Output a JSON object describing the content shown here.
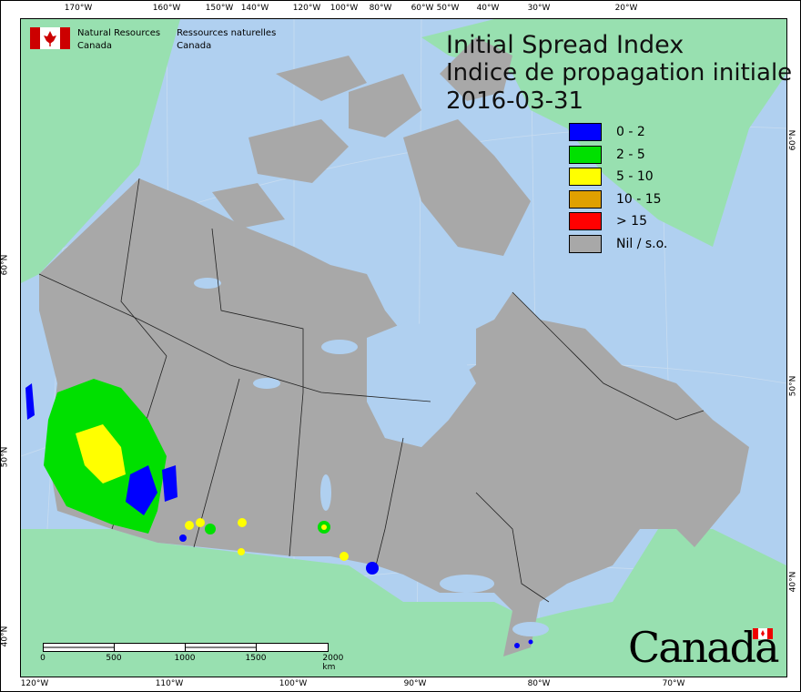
{
  "title": {
    "en": "Initial Spread Index",
    "fr": "Indice de propagation initiale",
    "date": "2016-03-31"
  },
  "agency": {
    "en_line1": "Natural Resources",
    "en_line2": "Canada",
    "fr_line1": "Ressources naturelles",
    "fr_line2": "Canada"
  },
  "wordmark": "Canada",
  "legend": [
    {
      "label": "0 - 2",
      "color": "#0000ff"
    },
    {
      "label": "2 - 5",
      "color": "#00e000"
    },
    {
      "label": "5 - 10",
      "color": "#ffff00"
    },
    {
      "label": "10 - 15",
      "color": "#e0a000"
    },
    {
      "label": "> 15",
      "color": "#ff0000"
    },
    {
      "label": "Nil / s.o.",
      "color": "#a8a8a8"
    }
  ],
  "top_ticks": [
    "170°W",
    "160°W",
    "150°W",
    "140°W",
    "120°W",
    "100°W",
    "80°W",
    "60°W",
    "50°W",
    "40°W",
    "30°W",
    "20°W"
  ],
  "bottom_ticks": [
    "120°W",
    "110°W",
    "100°W",
    "90°W",
    "80°W",
    "70°W"
  ],
  "left_ticks": [
    "60°N",
    "50°N",
    "40°N"
  ],
  "right_ticks": [
    "60°N",
    "50°N",
    "40°N"
  ],
  "scale": {
    "labels": [
      "0",
      "500",
      "1000",
      "1500",
      "2000"
    ],
    "unit": "km"
  },
  "colors": {
    "water": "#b0d0f0",
    "foreign_land": "#98e0b0",
    "canada": "#a8a8a8"
  }
}
